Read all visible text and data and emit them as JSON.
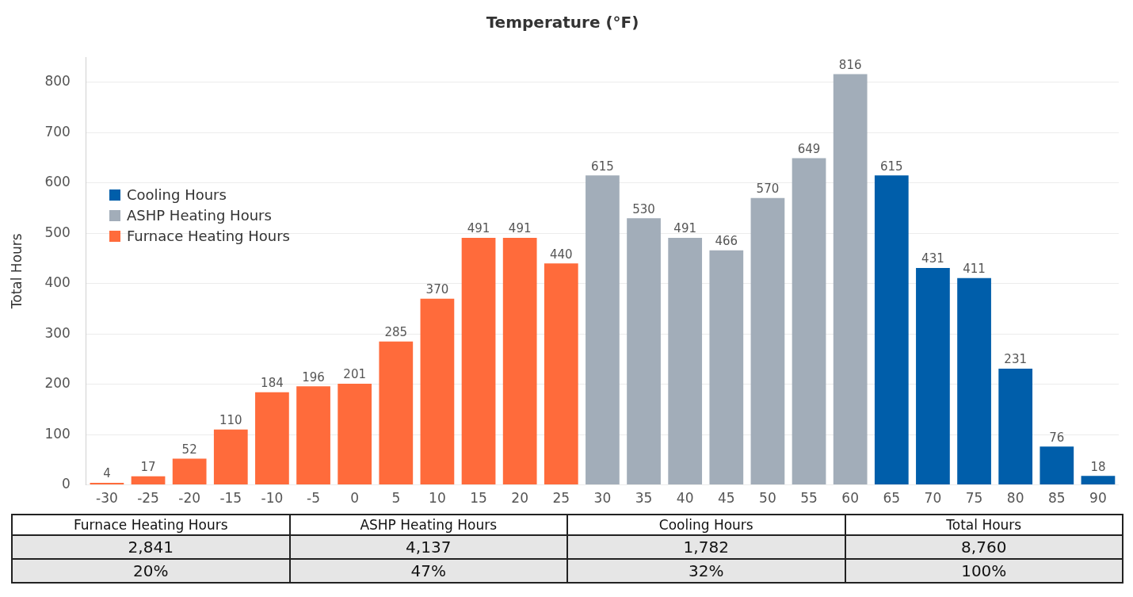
{
  "chart_data": {
    "type": "bar",
    "title": "Temperature (°F)",
    "ylabel": "Total Hours",
    "categories": [
      "-30",
      "-25",
      "-20",
      "-15",
      "-10",
      "-5",
      "0",
      "5",
      "10",
      "15",
      "20",
      "25",
      "30",
      "35",
      "40",
      "45",
      "50",
      "55",
      "60",
      "65",
      "70",
      "75",
      "80",
      "85",
      "90"
    ],
    "series": [
      {
        "name": "Cooling Hours",
        "color": "#005eaa",
        "values": [
          null,
          null,
          null,
          null,
          null,
          null,
          null,
          null,
          null,
          null,
          null,
          null,
          null,
          null,
          null,
          null,
          null,
          null,
          null,
          615,
          431,
          411,
          231,
          76,
          18
        ]
      },
      {
        "name": "ASHP Heating Hours",
        "color": "#a2adb9",
        "values": [
          null,
          null,
          null,
          null,
          null,
          null,
          null,
          null,
          null,
          null,
          null,
          null,
          615,
          530,
          491,
          466,
          570,
          649,
          816,
          null,
          null,
          null,
          null,
          null,
          null
        ]
      },
      {
        "name": "Furnace Heating Hours",
        "color": "#ff6b3b",
        "values": [
          4,
          17,
          52,
          110,
          184,
          196,
          201,
          285,
          370,
          491,
          491,
          440,
          null,
          null,
          null,
          null,
          null,
          null,
          null,
          null,
          null,
          null,
          null,
          null,
          null
        ]
      }
    ],
    "stacked": true,
    "ylim": [
      0,
      850
    ],
    "yticks": [
      0,
      100,
      200,
      300,
      400,
      500,
      600,
      700,
      800
    ],
    "grid": "y",
    "legend": "left",
    "data_labels": true,
    "annotations": [
      "Furnace Heating Hours",
      "ASHP Heating Hours",
      "Cooling Hours",
      "Total Hours",
      "2,841",
      "4,137",
      "1,782",
      "8,760",
      "20%",
      "47%",
      "32%",
      "100%"
    ]
  }
}
